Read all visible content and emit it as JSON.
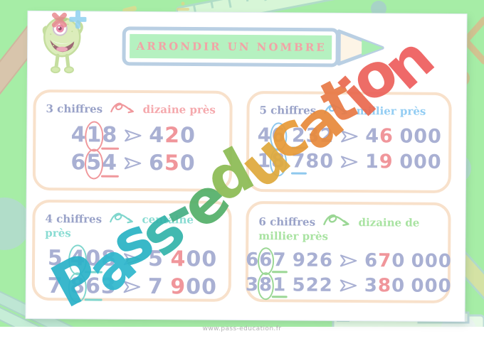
{
  "page": {
    "title": "ARRONDIR UN NOMBRE",
    "footer_url": "www.pass-education.fr"
  },
  "watermark": {
    "text": "Pass-education",
    "letters": [
      {
        "ch": "P",
        "color": "#2cb2c9"
      },
      {
        "ch": "a",
        "color": "#2fb7cd"
      },
      {
        "ch": "s",
        "color": "#2bb3c4"
      },
      {
        "ch": "s",
        "color": "#34b4ab"
      },
      {
        "ch": "-",
        "color": "#47af85"
      },
      {
        "ch": "e",
        "color": "#55b06a"
      },
      {
        "ch": "d",
        "color": "#8cbc55"
      },
      {
        "ch": "u",
        "color": "#dfaa3d"
      },
      {
        "ch": "c",
        "color": "#e89a38"
      },
      {
        "ch": "a",
        "color": "#e88a3c"
      },
      {
        "ch": "t",
        "color": "#e87a46"
      },
      {
        "ch": "i",
        "color": "#ea6a50"
      },
      {
        "ch": "o",
        "color": "#ec635c"
      },
      {
        "ch": "n",
        "color": "#ee5e5e"
      }
    ]
  },
  "boxes": [
    {
      "header": "3 chiffres",
      "target": "dizaine près",
      "accent": "#f0989c",
      "label_color": "#f5a9ad",
      "rows": [
        {
          "source": "418",
          "circle": 1,
          "underline": 2,
          "result": "420",
          "accent_digit": 1
        },
        {
          "source": "654",
          "circle": 1,
          "underline": 2,
          "result": "650",
          "accent_digit": 1
        }
      ]
    },
    {
      "header": "5 chiffres",
      "target": "millier près",
      "accent": "#8ec8ee",
      "label_color": "#93cdf3",
      "rows": [
        {
          "source": "46 232",
          "circle": 1,
          "underline": 3,
          "result": "46 000",
          "accent_digit": 1
        },
        {
          "source": "18 780",
          "circle": 1,
          "underline": 3,
          "result": "19 000",
          "accent_digit": 1
        }
      ]
    },
    {
      "header": "4 chiffres",
      "target": "centaine près",
      "accent": "#7fd6cd",
      "label_color": "#8adcd3",
      "rows": [
        {
          "source": "5 408",
          "circle": 2,
          "underline": 3,
          "result": "5 400",
          "accent_digit": 2
        },
        {
          "source": "7 863",
          "circle": 2,
          "underline": 3,
          "result": "7 900",
          "accent_digit": 2
        }
      ]
    },
    {
      "header": "6 chiffres",
      "target": "dizaine de millier près",
      "accent": "#9bd795",
      "label_color": "#a9e3a2",
      "rows": [
        {
          "source": "667 926",
          "circle": 1,
          "underline": 2,
          "result": "670 000",
          "accent_digit": 1
        },
        {
          "source": "381 522",
          "circle": 1,
          "underline": 2,
          "result": "380 000",
          "accent_digit": 1
        }
      ]
    }
  ],
  "icons": {
    "mascot": "one-eyed-monster",
    "multiply": "×",
    "plus": "+",
    "loop_arrow": "curly-loop-right",
    "result_arrow": "open-right-arrowhead",
    "banner": "pencil-banner"
  },
  "colors": {
    "background": "#a6eda6",
    "number": "#a9b0d3",
    "header": "#99a2c8",
    "accent_digit": "#f0969b",
    "box_border": "#f8e1cb",
    "banner_fill": "#b5f1c0",
    "banner_outline": "#b9cfe3",
    "title": "#f2a3a6"
  }
}
